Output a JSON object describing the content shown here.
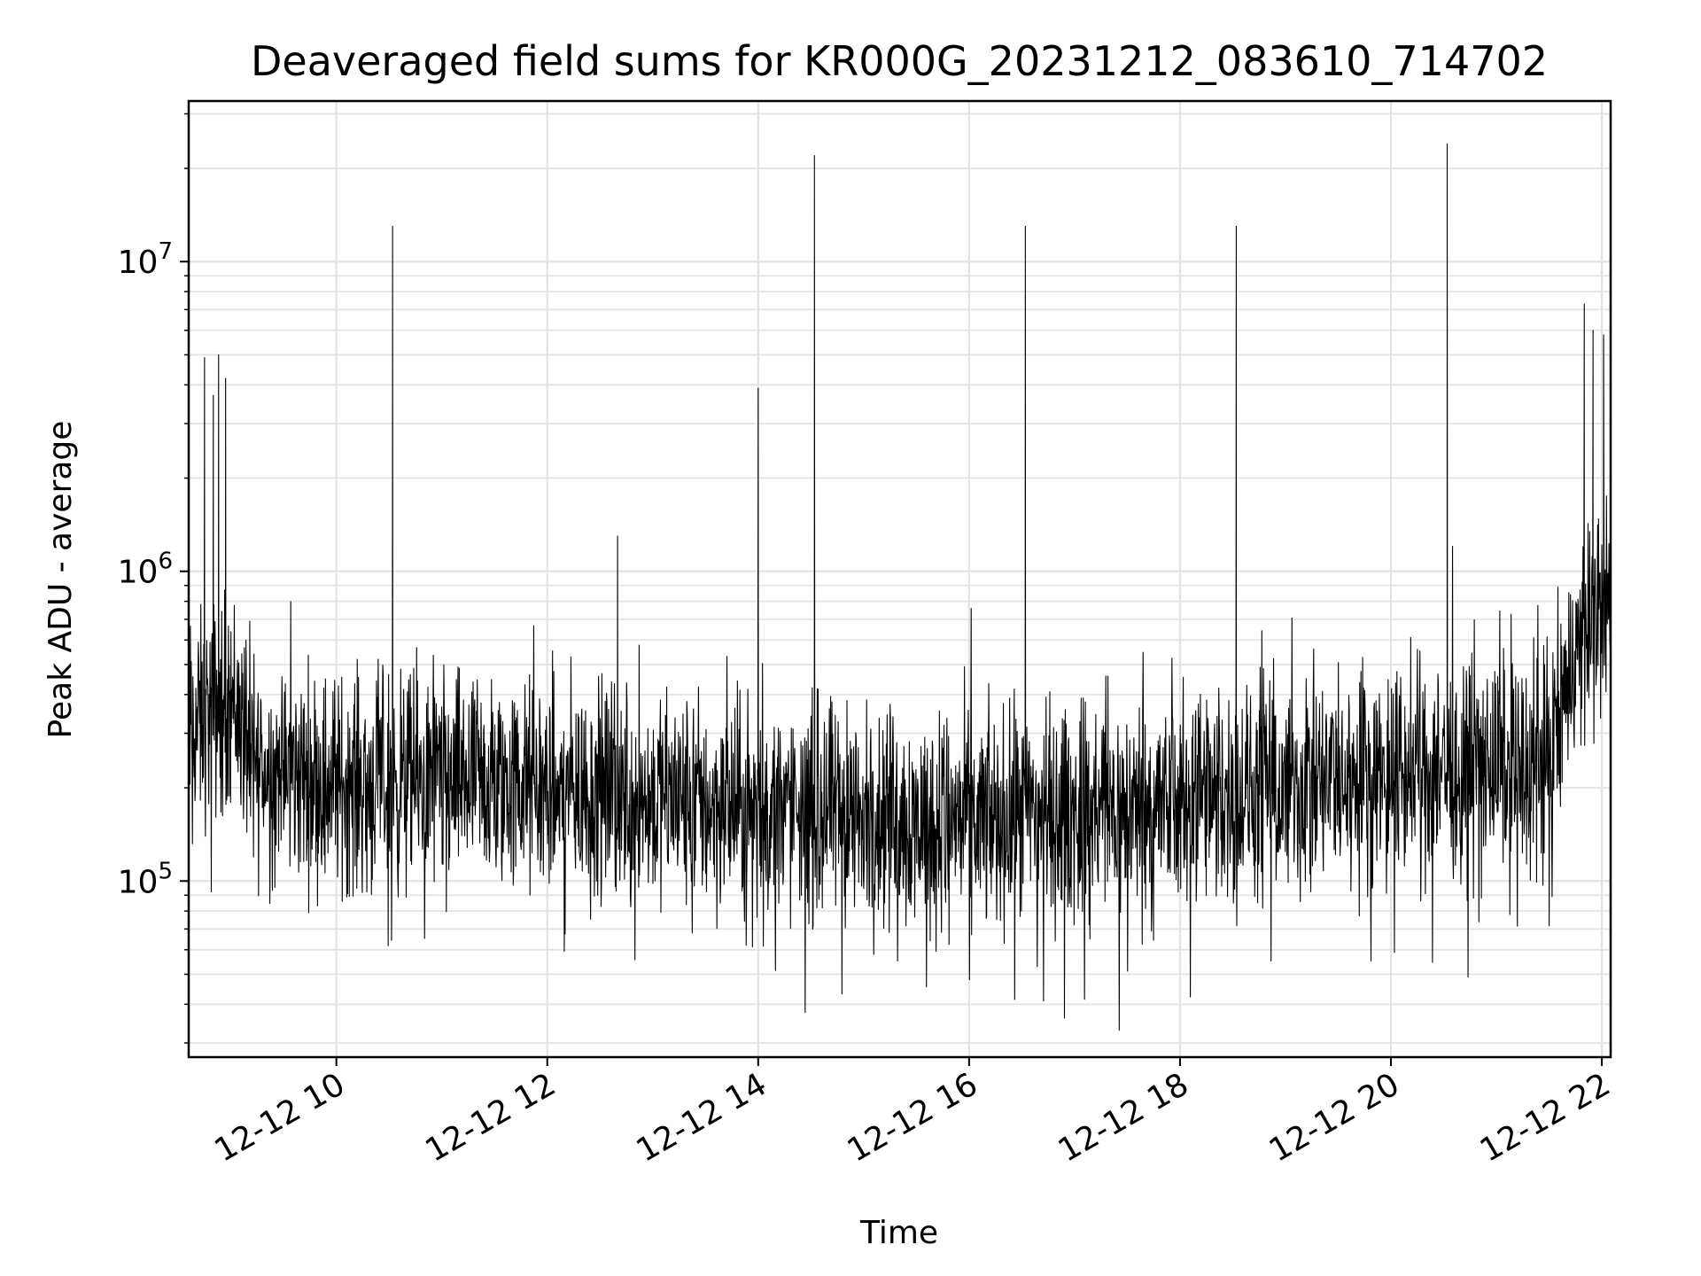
{
  "chart_data": {
    "type": "line",
    "title": "Deaveraged field sums for KR000G_20231212_083610_714702",
    "xlabel": "Time",
    "ylabel": "Peak ADU - average",
    "x_axis": {
      "kind": "datetime",
      "range": [
        "2023-12-12T08:36",
        "2023-12-12T22:05"
      ],
      "tick_values": [
        "2023-12-12T10:00",
        "2023-12-12T12:00",
        "2023-12-12T14:00",
        "2023-12-12T16:00",
        "2023-12-12T18:00",
        "2023-12-12T20:00",
        "2023-12-12T22:00"
      ],
      "tick_labels": [
        "12-12 10",
        "12-12 12",
        "12-12 14",
        "12-12 16",
        "12-12 18",
        "12-12 20",
        "12-12 22"
      ]
    },
    "y_axis": {
      "scale": "log",
      "range": [
        27000,
        33000000
      ],
      "tick_values": [
        100000,
        1000000,
        10000000
      ],
      "tick_labels": [
        {
          "base": "10",
          "exp": "5"
        },
        {
          "base": "10",
          "exp": "6"
        },
        {
          "base": "10",
          "exp": "7"
        }
      ]
    },
    "grid": true,
    "line_color": "#000000",
    "series": [
      {
        "baseline": [
          {
            "t": "2023-12-12T08:36",
            "y": 300000
          },
          {
            "t": "2023-12-12T09:00",
            "y": 400000
          },
          {
            "t": "2023-12-12T09:15",
            "y": 230000
          },
          {
            "t": "2023-12-12T10:00",
            "y": 210000
          },
          {
            "t": "2023-12-12T12:00",
            "y": 200000
          },
          {
            "t": "2023-12-12T14:00",
            "y": 170000
          },
          {
            "t": "2023-12-12T16:00",
            "y": 155000
          },
          {
            "t": "2023-12-12T18:00",
            "y": 175000
          },
          {
            "t": "2023-12-12T20:00",
            "y": 220000
          },
          {
            "t": "2023-12-12T21:30",
            "y": 240000
          },
          {
            "t": "2023-12-12T21:45",
            "y": 550000
          },
          {
            "t": "2023-12-12T22:05",
            "y": 800000
          }
        ],
        "peaks": [
          {
            "t": "2023-12-12T08:45",
            "y": 4900000
          },
          {
            "t": "2023-12-12T08:50",
            "y": 3700000
          },
          {
            "t": "2023-12-12T08:53",
            "y": 5000000
          },
          {
            "t": "2023-12-12T08:57",
            "y": 4200000
          },
          {
            "t": "2023-12-12T10:32",
            "y": 13000000
          },
          {
            "t": "2023-12-12T12:40",
            "y": 1300000
          },
          {
            "t": "2023-12-12T14:00",
            "y": 3900000
          },
          {
            "t": "2023-12-12T14:32",
            "y": 22000000
          },
          {
            "t": "2023-12-12T16:32",
            "y": 13000000
          },
          {
            "t": "2023-12-12T18:32",
            "y": 13000000
          },
          {
            "t": "2023-12-12T20:32",
            "y": 24000000
          },
          {
            "t": "2023-12-12T21:50",
            "y": 7300000
          },
          {
            "t": "2023-12-12T21:55",
            "y": 6000000
          },
          {
            "t": "2023-12-12T22:01",
            "y": 5800000
          }
        ]
      }
    ]
  }
}
